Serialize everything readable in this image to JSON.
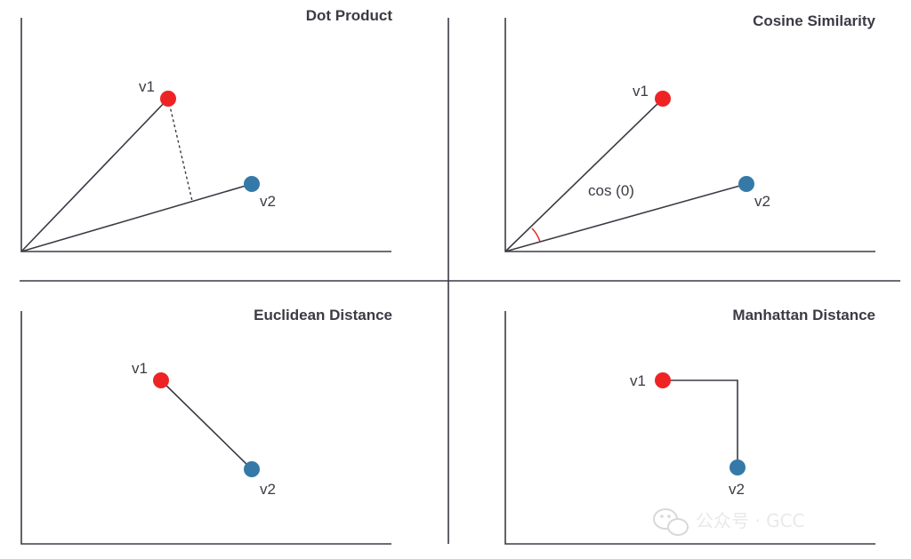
{
  "colors": {
    "v1": "#ee2424",
    "v2": "#3579a8",
    "line": "#3b3b45",
    "angle": "#e02020"
  },
  "panels": {
    "dot_product": {
      "title": "Dot Product",
      "v1_label": "v1",
      "v2_label": "v2"
    },
    "cosine_similarity": {
      "title": "Cosine Similarity",
      "v1_label": "v1",
      "v2_label": "v2",
      "angle_label": "cos (0)"
    },
    "euclidean_distance": {
      "title": "Euclidean Distance",
      "v1_label": "v1",
      "v2_label": "v2"
    },
    "manhattan_distance": {
      "title": "Manhattan Distance",
      "v1_label": "v1",
      "v2_label": "v2"
    }
  },
  "watermark": {
    "icon": "wechat-icon",
    "text": "公众号 · GCC"
  }
}
